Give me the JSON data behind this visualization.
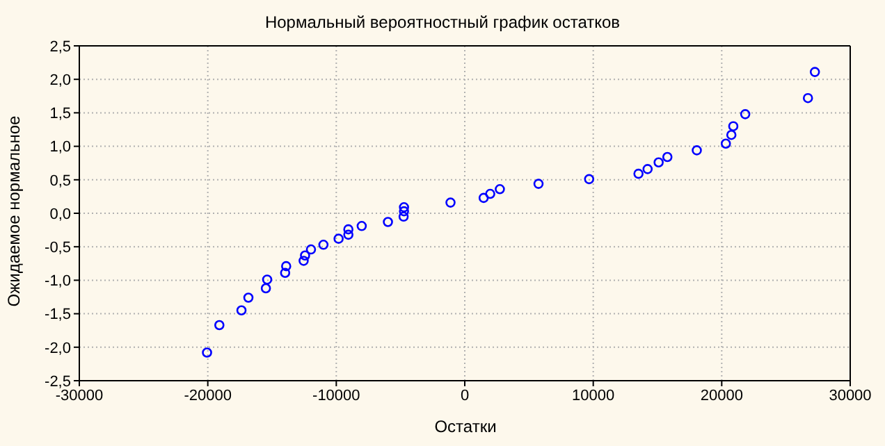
{
  "chart_data": {
    "type": "scatter",
    "title": "Нормальный вероятностный график остатков",
    "xlabel": "Остатки",
    "ylabel": "Ожидаемое нормальное",
    "x": [
      -20060,
      -19100,
      -17380,
      -16840,
      -15480,
      -15380,
      -13980,
      -13900,
      -12540,
      -12430,
      -11970,
      -11000,
      -9820,
      -9060,
      -9060,
      -8020,
      -5980,
      -4760,
      -4730,
      -4730,
      -1110,
      1470,
      1980,
      2730,
      5740,
      9680,
      13520,
      14230,
      15090,
      15770,
      18060,
      20320,
      20750,
      20900,
      21830,
      26710,
      27250
    ],
    "series": [
      {
        "color": "#0000ff",
        "values": [
          -2.08,
          -1.67,
          -1.45,
          -1.26,
          -1.12,
          -0.99,
          -0.89,
          -0.79,
          -0.71,
          -0.63,
          -0.54,
          -0.47,
          -0.38,
          -0.32,
          -0.24,
          -0.19,
          -0.13,
          -0.05,
          0.03,
          0.09,
          0.16,
          0.23,
          0.29,
          0.36,
          0.44,
          0.51,
          0.59,
          0.66,
          0.76,
          0.84,
          0.94,
          1.04,
          1.17,
          1.3,
          1.48,
          1.72,
          2.11
        ]
      }
    ],
    "xlim": [
      -30000,
      30000
    ],
    "xticks": [
      -30000,
      -20000,
      -10000,
      0,
      10000,
      20000,
      30000
    ],
    "ylim": [
      -2.5,
      2.5
    ],
    "yticks": [
      {
        "value": -2.5,
        "label": "-2,5"
      },
      {
        "value": -2,
        "label": "-2,0"
      },
      {
        "value": -1.5,
        "label": "-1,5"
      },
      {
        "value": -1,
        "label": "-1,0"
      },
      {
        "value": -0.5,
        "label": "-0,5"
      },
      {
        "value": 0,
        "label": "0,0"
      },
      {
        "value": 0.5,
        "label": "0,5"
      },
      {
        "value": 1,
        "label": "1,0"
      },
      {
        "value": 1.5,
        "label": "1,5"
      },
      {
        "value": 2,
        "label": "2,0"
      },
      {
        "value": 2.5,
        "label": "2,5"
      }
    ],
    "grid": true,
    "marker": "circle",
    "legend": false
  }
}
